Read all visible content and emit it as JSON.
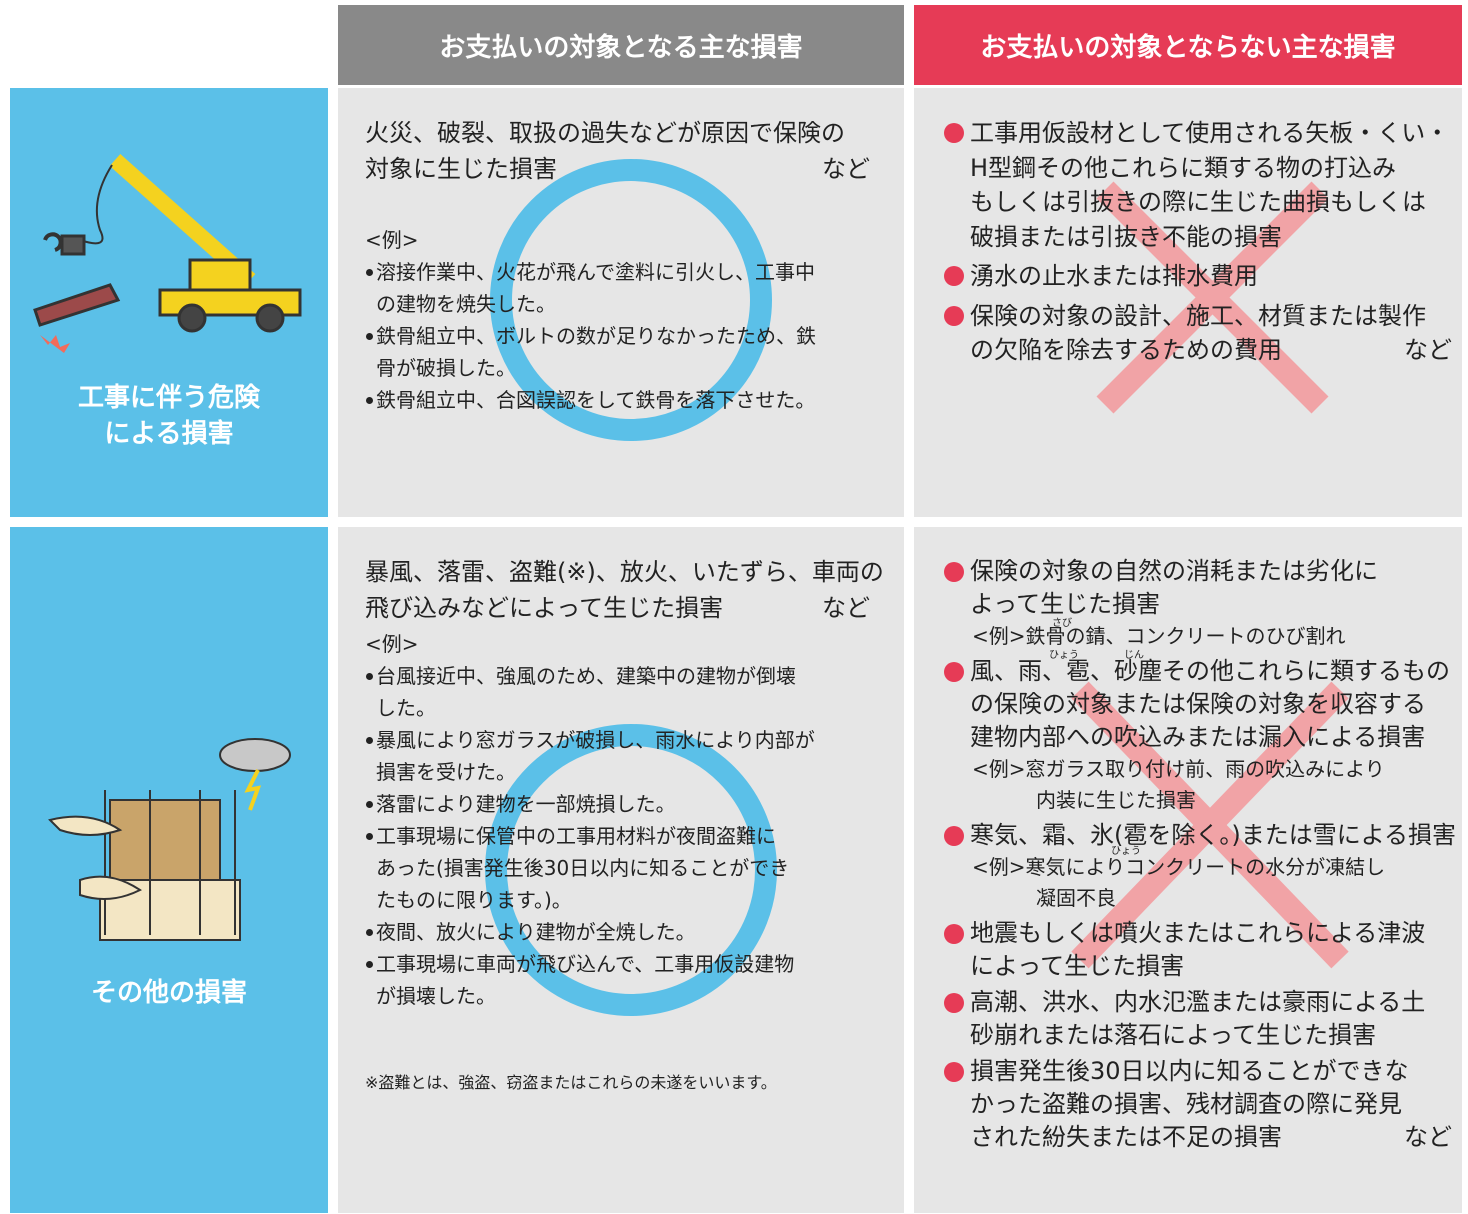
{
  "header": {
    "covered": "お支払いの対象となる主な損害",
    "not_covered": "お支払いの対象とならない主な損害"
  },
  "rows": [
    {
      "category_lines": [
        "工事に伴う危険",
        "による損害"
      ],
      "covered": {
        "summary_lines": [
          "火災、破裂、取扱の過失などが原因で保険の",
          "対象に生じた損害"
        ],
        "summary_suffix": "など",
        "example_heading": "<例>",
        "examples": [
          [
            "溶接作業中、火花が飛んで塗料に引火し、工事中",
            "の建物を焼失した。"
          ],
          [
            "鉄骨組立中、ボルトの数が足りなかったため、鉄",
            "骨が破損した。"
          ],
          [
            "鉄骨組立中、合図誤認をして鉄骨を落下させた。"
          ]
        ]
      },
      "not_covered": {
        "items": [
          {
            "lines": [
              "工事用仮設材として使用される矢板・くい・",
              "H型鋼その他これらに類する物の打込み",
              "もしくは引抜きの際に生じた曲損もしくは",
              "破損または引抜き不能の損害"
            ]
          },
          {
            "lines": [
              "湧水の止水または排水費用"
            ]
          },
          {
            "lines": [
              "保険の対象の設計、施工、材質または製作",
              "の欠陥を除去するための費用"
            ],
            "suffix": "など"
          }
        ]
      }
    },
    {
      "category_lines": [
        "その他の損害"
      ],
      "covered": {
        "summary_lines": [
          "暴風、落雷、盗難(※)、放火、いたずら、車両の",
          "飛び込みなどによって生じた損害"
        ],
        "summary_suffix": "など",
        "example_heading": "<例>",
        "examples": [
          [
            "台風接近中、強風のため、建築中の建物が倒壊",
            "した。"
          ],
          [
            "暴風により窓ガラスが破損し、雨水により内部が",
            "損害を受けた。"
          ],
          [
            "落雷により建物を一部焼損した。"
          ],
          [
            "工事現場に保管中の工事用材料が夜間盗難に",
            "あった(損害発生後30日以内に知ることができ",
            "たものに限ります。)。"
          ],
          [
            "夜間、放火により建物が全焼した。"
          ],
          [
            "工事現場に車両が飛び込んで、工事用仮設建物",
            "が損壊した。"
          ]
        ],
        "note": "※盗難とは、強盗、窃盗またはこれらの未遂をいいます。"
      },
      "not_covered": {
        "items": [
          {
            "lines": [
              "保険の対象の自然の消耗または劣化に",
              "よって生じた損害"
            ],
            "example_lines": [
              "<例>鉄骨の錆、コンクリートのひび割れ"
            ]
          },
          {
            "lines": [
              "風、雨、雹、砂塵その他これらに類するもの",
              "の保険の対象または保険の対象を収容する",
              "建物内部への吹込みまたは漏入による損害"
            ],
            "example_lines": [
              "<例>窓ガラス取り付け前、雨の吹込みにより",
              "内装に生じた損害"
            ]
          },
          {
            "lines": [
              "寒気、霜、氷(雹を除く。)または雪による損害"
            ],
            "example_lines": [
              "<例>寒気によりコンクリートの水分が凍結し",
              "凝固不良"
            ]
          },
          {
            "lines": [
              "地震もしくは噴火またはこれらによる津波",
              "によって生じた損害"
            ]
          },
          {
            "lines": [
              "高潮、洪水、内水氾濫または豪雨による土",
              "砂崩れまたは落石によって生じた損害"
            ]
          },
          {
            "lines": [
              "損害発生後30日以内に知ることができな",
              "かった盗難の損害、残材調査の際に発見",
              "された紛失または不足の損害"
            ],
            "suffix": "など"
          }
        ],
        "furigana": [
          "さび",
          "ひょう",
          "じん",
          "ひょう"
        ]
      }
    }
  ]
}
